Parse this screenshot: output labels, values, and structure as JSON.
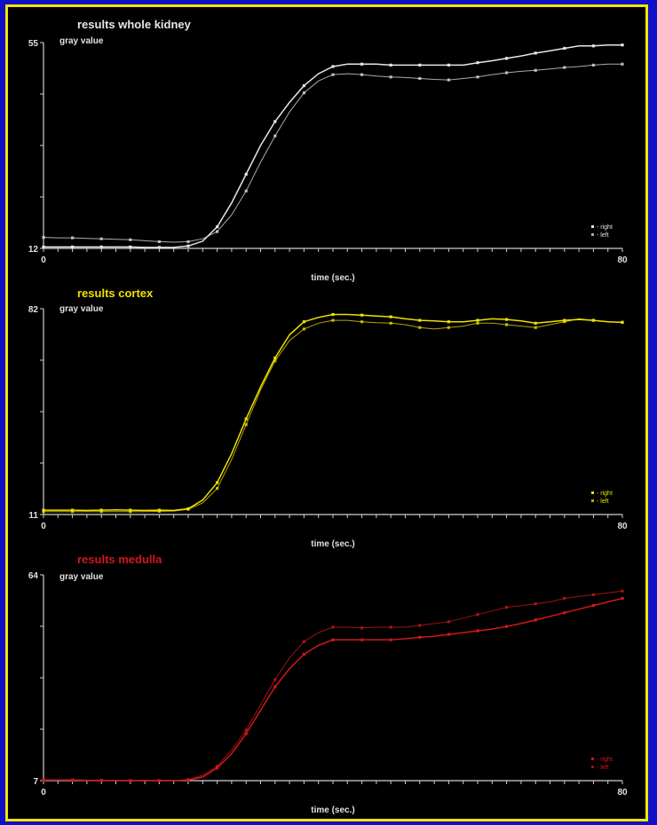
{
  "colors": {
    "background": "#000000",
    "border": "#f2e600",
    "outer": "#1010c8",
    "axis": "#cfcfcf",
    "whole": "#e6e6e6",
    "cortex": "#f0e000",
    "medulla": "#d01818"
  },
  "chart_data": [
    {
      "type": "line",
      "title": "results whole kidney",
      "ylabel": "gray value",
      "xlabel": "time (sec.)",
      "xlim": [
        0,
        80
      ],
      "ylim": [
        12,
        55
      ],
      "x_tick_labels": [
        "0",
        "80"
      ],
      "y_tick_labels": [
        "12",
        "55"
      ],
      "legend": [
        "- right",
        "- left"
      ],
      "legend_position": "bottom-right",
      "x": [
        0,
        2,
        4,
        6,
        8,
        10,
        12,
        14,
        16,
        18,
        20,
        22,
        24,
        26,
        28,
        30,
        32,
        34,
        36,
        38,
        40,
        42,
        44,
        46,
        48,
        50,
        52,
        54,
        56,
        58,
        60,
        62,
        64,
        66,
        68,
        70,
        72,
        74,
        76,
        78,
        80
      ],
      "series": [
        {
          "name": "right",
          "values": [
            12.3,
            12.3,
            12.3,
            12.3,
            12.3,
            12.3,
            12.3,
            12.2,
            12.2,
            12.2,
            12.5,
            13.5,
            16.5,
            21.5,
            27.5,
            33.5,
            38.5,
            42.5,
            46.0,
            48.5,
            50.0,
            50.5,
            50.5,
            50.5,
            50.3,
            50.3,
            50.3,
            50.3,
            50.3,
            50.3,
            50.8,
            51.2,
            51.7,
            52.2,
            52.8,
            53.3,
            53.8,
            54.3,
            54.3,
            54.5,
            54.5
          ]
        },
        {
          "name": "left",
          "values": [
            14.3,
            14.2,
            14.2,
            14.1,
            14.0,
            13.9,
            13.8,
            13.6,
            13.4,
            13.3,
            13.4,
            14.0,
            15.5,
            19.0,
            24.0,
            30.0,
            35.5,
            40.5,
            44.5,
            47.0,
            48.3,
            48.5,
            48.3,
            48.0,
            47.8,
            47.7,
            47.5,
            47.3,
            47.2,
            47.5,
            47.8,
            48.3,
            48.7,
            49.0,
            49.2,
            49.5,
            49.8,
            50.0,
            50.3,
            50.5,
            50.5
          ]
        }
      ]
    },
    {
      "type": "line",
      "title": "results cortex",
      "ylabel": "gray value",
      "xlabel": "time (sec.)",
      "xlim": [
        0,
        80
      ],
      "ylim": [
        11,
        82
      ],
      "x_tick_labels": [
        "0",
        "80"
      ],
      "y_tick_labels": [
        "11",
        "82"
      ],
      "legend": [
        "- right",
        "- left"
      ],
      "legend_position": "bottom-right",
      "x": [
        0,
        2,
        4,
        6,
        8,
        10,
        12,
        14,
        16,
        18,
        20,
        22,
        24,
        26,
        28,
        30,
        32,
        34,
        36,
        38,
        40,
        42,
        44,
        46,
        48,
        50,
        52,
        54,
        56,
        58,
        60,
        62,
        64,
        66,
        68,
        70,
        72,
        74,
        76,
        78,
        80
      ],
      "series": [
        {
          "name": "right",
          "values": [
            12.5,
            12.5,
            12.5,
            12.4,
            12.5,
            12.6,
            12.5,
            12.4,
            12.5,
            12.4,
            13.0,
            16.0,
            22.0,
            32.0,
            44.0,
            55.0,
            65.0,
            73.0,
            77.5,
            79.0,
            80.0,
            80.0,
            79.8,
            79.5,
            79.2,
            78.5,
            78.0,
            77.8,
            77.5,
            77.5,
            78.0,
            78.5,
            78.3,
            77.8,
            77.0,
            77.5,
            78.0,
            78.3,
            78.0,
            77.5,
            77.3
          ]
        },
        {
          "name": "left",
          "values": [
            12.0,
            12.0,
            12.0,
            12.0,
            12.0,
            12.0,
            12.0,
            12.0,
            12.1,
            12.2,
            12.8,
            15.0,
            20.0,
            30.0,
            42.0,
            54.0,
            64.0,
            71.0,
            75.0,
            77.0,
            78.0,
            78.0,
            77.5,
            77.2,
            77.0,
            76.5,
            75.5,
            75.0,
            75.5,
            76.0,
            77.0,
            77.0,
            76.5,
            76.0,
            75.5,
            76.5,
            77.5,
            78.5,
            78.0,
            77.5,
            77.3
          ]
        }
      ]
    },
    {
      "type": "line",
      "title": "results medulla",
      "ylabel": "gray value",
      "xlabel": "time (sec.)",
      "xlim": [
        0,
        80
      ],
      "ylim": [
        7,
        64
      ],
      "x_tick_labels": [
        "0",
        "80"
      ],
      "y_tick_labels": [
        "7",
        "64"
      ],
      "legend": [
        "- right",
        "- left"
      ],
      "legend_position": "bottom-right",
      "x": [
        0,
        2,
        4,
        6,
        8,
        10,
        12,
        14,
        16,
        18,
        20,
        22,
        24,
        26,
        28,
        30,
        32,
        34,
        36,
        38,
        40,
        42,
        44,
        46,
        48,
        50,
        52,
        54,
        56,
        58,
        60,
        62,
        64,
        66,
        68,
        70,
        72,
        74,
        76,
        78,
        80
      ],
      "series": [
        {
          "name": "right",
          "values": [
            7.2,
            7.2,
            7.2,
            7.1,
            7.1,
            7.0,
            7.0,
            7.0,
            7.0,
            7.0,
            7.2,
            8.0,
            10.5,
            14.5,
            20.0,
            26.5,
            33.0,
            38.0,
            42.0,
            44.5,
            46.0,
            46.0,
            46.0,
            46.0,
            46.0,
            46.3,
            46.7,
            47.0,
            47.5,
            48.0,
            48.5,
            49.0,
            49.7,
            50.5,
            51.5,
            52.5,
            53.5,
            54.5,
            55.5,
            56.5,
            57.5
          ]
        },
        {
          "name": "left",
          "values": [
            7.1,
            7.1,
            7.1,
            7.0,
            7.0,
            7.0,
            7.0,
            7.0,
            7.0,
            7.0,
            7.3,
            8.5,
            11.0,
            15.5,
            21.0,
            28.0,
            35.0,
            41.0,
            45.5,
            48.0,
            49.5,
            49.5,
            49.3,
            49.5,
            49.5,
            49.5,
            50.0,
            50.5,
            51.0,
            52.0,
            53.0,
            54.0,
            55.0,
            55.5,
            56.0,
            56.5,
            57.5,
            58.0,
            58.5,
            59.0,
            59.5
          ]
        }
      ]
    }
  ]
}
